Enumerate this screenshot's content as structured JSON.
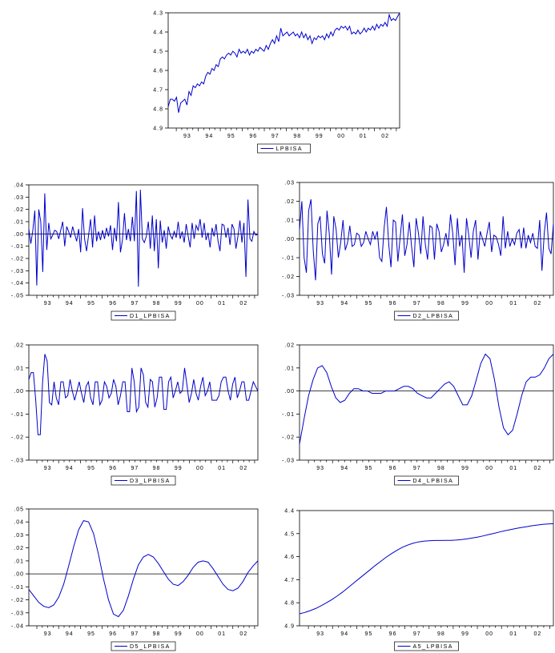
{
  "page": {
    "charts": [
      {
        "id": "top",
        "type": "line",
        "legend": "LPBISA",
        "ylim": [
          4.3,
          4.9
        ],
        "yticks": [
          "4.3",
          "4.4",
          "4.5",
          "4.6",
          "4.7",
          "4.8",
          "4.9"
        ],
        "xticks": [
          "93",
          "94",
          "95",
          "96",
          "97",
          "98",
          "99",
          "00",
          "01",
          "02"
        ],
        "zero_line": false,
        "line_color": "#0000cc",
        "series": [
          4.41,
          4.45,
          4.45,
          4.44,
          4.46,
          4.38,
          4.43,
          4.44,
          4.45,
          4.42,
          4.49,
          4.47,
          4.52,
          4.51,
          4.53,
          4.52,
          4.54,
          4.53,
          4.57,
          4.59,
          4.58,
          4.61,
          4.6,
          4.63,
          4.62,
          4.66,
          4.67,
          4.66,
          4.68,
          4.69,
          4.68,
          4.7,
          4.69,
          4.67,
          4.71,
          4.69,
          4.7,
          4.69,
          4.71,
          4.68,
          4.7,
          4.69,
          4.71,
          4.7,
          4.72,
          4.71,
          4.7,
          4.73,
          4.71,
          4.74,
          4.76,
          4.74,
          4.78,
          4.75,
          4.82,
          4.78,
          4.79,
          4.8,
          4.78,
          4.79,
          4.8,
          4.78,
          4.79,
          4.77,
          4.8,
          4.77,
          4.79,
          4.76,
          4.78,
          4.74,
          4.77,
          4.76,
          4.78,
          4.77,
          4.78,
          4.76,
          4.79,
          4.77,
          4.8,
          4.78,
          4.81,
          4.82,
          4.81,
          4.83,
          4.82,
          4.83,
          4.81,
          4.83,
          4.79,
          4.8,
          4.79,
          4.81,
          4.79,
          4.8,
          4.82,
          4.8,
          4.82,
          4.81,
          4.83,
          4.81,
          4.84,
          4.82,
          4.84,
          4.83,
          4.85,
          4.83,
          4.89,
          4.86,
          4.87,
          4.86,
          4.88,
          4.9
        ]
      },
      {
        "id": "d1",
        "type": "line",
        "legend": "D1_LPBISA",
        "ylim": [
          -0.05,
          0.04
        ],
        "yticks": [
          ".04",
          ".03",
          ".02",
          ".01",
          ".00",
          "-.01",
          "-.02",
          "-.03",
          "-.04",
          "-.05"
        ],
        "xticks": [
          "93",
          "94",
          "95",
          "96",
          "97",
          "98",
          "99",
          "00",
          "01",
          "02"
        ],
        "zero_line": true,
        "line_color": "#0000cc",
        "series": [
          0.004,
          -0.008,
          0.003,
          0.019,
          -0.042,
          0.02,
          0.01,
          -0.031,
          0.033,
          -0.013,
          0.009,
          -0.004,
          -0.001,
          0.003,
          0.002,
          -0.004,
          0.003,
          0.01,
          -0.01,
          0.006,
          0.002,
          -0.003,
          0.006,
          0.0,
          -0.006,
          0.004,
          -0.015,
          0.021,
          -0.004,
          -0.014,
          -0.001,
          0.012,
          -0.011,
          0.015,
          -0.006,
          0.002,
          -0.005,
          0.003,
          -0.004,
          0.005,
          -0.002,
          0.007,
          -0.013,
          0.005,
          -0.006,
          0.026,
          -0.015,
          -0.005,
          0.017,
          -0.005,
          0.004,
          -0.006,
          0.014,
          -0.006,
          0.035,
          -0.043,
          0.036,
          -0.004,
          -0.007,
          -0.002,
          0.01,
          -0.012,
          0.015,
          -0.014,
          0.012,
          -0.028,
          0.011,
          -0.007,
          0.003,
          -0.012,
          0.006,
          -0.001,
          -0.004,
          0.002,
          -0.003,
          0.01,
          -0.004,
          0.002,
          -0.007,
          0.008,
          -0.002,
          -0.011,
          0.009,
          -0.004,
          0.007,
          0.003,
          0.012,
          -0.003,
          0.009,
          -0.005,
          0.001,
          -0.011,
          0.005,
          -0.002,
          0.008,
          -0.006,
          -0.014,
          0.008,
          0.007,
          -0.003,
          0.005,
          -0.009,
          0.008,
          0.004,
          -0.012,
          -0.002,
          0.011,
          -0.007,
          0.009,
          -0.035,
          0.028,
          -0.004,
          -0.006,
          0.002,
          -0.001,
          0.0
        ]
      },
      {
        "id": "d2",
        "type": "line",
        "legend": "D2_LPBISA",
        "ylim": [
          -0.03,
          0.03
        ],
        "yticks": [
          ".03",
          ".02",
          ".01",
          ".00",
          "-.01",
          "-.02",
          "-.03"
        ],
        "xticks": [
          "93",
          "94",
          "95",
          "96",
          "97",
          "98",
          "99",
          "00",
          "01",
          "02"
        ],
        "zero_line": true,
        "line_color": "#0000cc",
        "series": [
          0.005,
          0.02,
          -0.01,
          -0.018,
          0.015,
          0.021,
          -0.006,
          -0.022,
          0.008,
          0.012,
          -0.008,
          -0.013,
          0.015,
          0.003,
          -0.019,
          0.012,
          0.005,
          -0.01,
          -0.002,
          0.01,
          -0.006,
          -0.002,
          0.007,
          -0.004,
          -0.003,
          0.003,
          0.002,
          -0.004,
          -0.002,
          0.004,
          0.0,
          -0.003,
          0.004,
          0.0,
          0.004,
          -0.01,
          -0.012,
          0.006,
          0.017,
          -0.003,
          -0.015,
          0.01,
          0.009,
          -0.012,
          0.001,
          0.013,
          -0.009,
          -0.003,
          0.009,
          -0.004,
          -0.015,
          0.011,
          0.003,
          -0.008,
          0.012,
          -0.003,
          -0.011,
          0.007,
          0.006,
          -0.011,
          0.008,
          0.004,
          -0.007,
          -0.003,
          0.003,
          -0.004,
          0.013,
          0.003,
          -0.014,
          0.011,
          -0.004,
          0.002,
          -0.018,
          0.011,
          0.002,
          -0.01,
          0.004,
          0.01,
          -0.011,
          0.004,
          0.0,
          -0.004,
          0.003,
          0.009,
          -0.007,
          0.002,
          0.001,
          -0.003,
          -0.009,
          0.012,
          -0.005,
          0.004,
          -0.004,
          0.0,
          -0.003,
          0.003,
          0.005,
          -0.005,
          0.006,
          -0.005,
          0.002,
          -0.002,
          0.003,
          -0.004,
          -0.005,
          0.01,
          -0.017,
          0.003,
          0.014,
          -0.005,
          -0.008,
          0.008
        ]
      },
      {
        "id": "d3",
        "type": "line",
        "legend": "D3_LPBISA",
        "ylim": [
          -0.03,
          0.02
        ],
        "yticks": [
          ".02",
          ".01",
          ".00",
          "-.01",
          "-.02",
          "-.03"
        ],
        "xticks": [
          "93",
          "94",
          "95",
          "96",
          "97",
          "98",
          "99",
          "00",
          "01",
          "02"
        ],
        "zero_line": true,
        "line_color": "#0000cc",
        "series": [
          0.005,
          0.008,
          0.008,
          -0.004,
          -0.019,
          -0.019,
          0.004,
          0.016,
          0.013,
          -0.005,
          -0.006,
          0.004,
          -0.003,
          -0.006,
          0.004,
          0.004,
          -0.003,
          -0.002,
          0.005,
          0.0,
          -0.004,
          0.0,
          0.004,
          -0.001,
          -0.005,
          0.002,
          0.004,
          -0.003,
          -0.006,
          0.004,
          0.004,
          -0.006,
          -0.004,
          0.004,
          0.002,
          -0.003,
          -0.001,
          0.005,
          0.002,
          -0.006,
          -0.002,
          0.004,
          0.004,
          -0.009,
          -0.009,
          0.01,
          0.004,
          -0.009,
          -0.007,
          0.01,
          0.007,
          -0.005,
          -0.007,
          0.005,
          0.004,
          -0.007,
          -0.003,
          0.006,
          0.006,
          -0.008,
          -0.008,
          0.004,
          0.006,
          -0.003,
          0.0,
          0.004,
          -0.001,
          0.0,
          0.01,
          0.003,
          -0.005,
          -0.001,
          0.005,
          -0.001,
          -0.004,
          0.002,
          0.006,
          -0.002,
          0.0,
          0.004,
          -0.004,
          -0.004,
          -0.004,
          -0.002,
          0.004,
          0.006,
          0.006,
          0.0,
          -0.004,
          0.003,
          0.006,
          -0.003,
          0.0,
          0.004,
          0.004,
          -0.004,
          -0.004,
          0.0,
          0.004,
          0.002,
          0.0
        ]
      },
      {
        "id": "d4",
        "type": "line",
        "legend": "D4_LPBISA",
        "ylim": [
          -0.03,
          0.02
        ],
        "yticks": [
          ".02",
          ".01",
          ".00",
          "-.01",
          "-.02",
          "-.03"
        ],
        "xticks": [
          "93",
          "94",
          "95",
          "96",
          "97",
          "98",
          "99",
          "00",
          "01",
          "02"
        ],
        "zero_line": true,
        "line_color": "#0000cc",
        "series": [
          -0.023,
          -0.012,
          -0.002,
          0.005,
          0.01,
          0.011,
          0.008,
          0.002,
          -0.003,
          -0.005,
          -0.004,
          -0.001,
          0.001,
          0.001,
          0.0,
          0.0,
          -0.001,
          -0.001,
          -0.001,
          0.0,
          0.0,
          0.0,
          0.001,
          0.002,
          0.002,
          0.001,
          -0.001,
          -0.002,
          -0.003,
          -0.003,
          -0.001,
          0.001,
          0.003,
          0.004,
          0.002,
          -0.002,
          -0.006,
          -0.006,
          -0.002,
          0.005,
          0.012,
          0.016,
          0.014,
          0.005,
          -0.007,
          -0.016,
          -0.019,
          -0.017,
          -0.01,
          -0.002,
          0.004,
          0.006,
          0.006,
          0.007,
          0.01,
          0.014,
          0.016
        ]
      },
      {
        "id": "d5",
        "type": "line",
        "legend": "D5_LPBISA",
        "ylim": [
          -0.04,
          0.05
        ],
        "yticks": [
          ".05",
          ".04",
          ".03",
          ".02",
          ".01",
          ".00",
          "-.01",
          "-.02",
          "-.03",
          "-.04"
        ],
        "xticks": [
          "93",
          "94",
          "95",
          "96",
          "97",
          "98",
          "99",
          "00",
          "01",
          "02"
        ],
        "zero_line": true,
        "line_color": "#0000cc",
        "series": [
          -0.012,
          -0.017,
          -0.022,
          -0.025,
          -0.026,
          -0.024,
          -0.018,
          -0.008,
          0.006,
          0.021,
          0.034,
          0.041,
          0.04,
          0.031,
          0.015,
          -0.004,
          -0.02,
          -0.031,
          -0.033,
          -0.028,
          -0.017,
          -0.004,
          0.007,
          0.013,
          0.015,
          0.013,
          0.008,
          0.002,
          -0.004,
          -0.008,
          -0.009,
          -0.006,
          -0.001,
          0.005,
          0.009,
          0.01,
          0.009,
          0.004,
          -0.002,
          -0.008,
          -0.012,
          -0.013,
          -0.011,
          -0.006,
          0.001,
          0.006,
          0.01
        ]
      },
      {
        "id": "a5",
        "type": "line",
        "legend": "A5_LPBISA",
        "ylim": [
          4.4,
          4.9
        ],
        "yticks": [
          "4.4",
          "4.5",
          "4.6",
          "4.7",
          "4.8",
          "4.9"
        ],
        "xticks": [
          "93",
          "94",
          "95",
          "96",
          "97",
          "98",
          "99",
          "00",
          "01",
          "02"
        ],
        "zero_line": false,
        "line_color": "#0000cc",
        "series": [
          4.452,
          4.458,
          4.466,
          4.475,
          4.487,
          4.5,
          4.514,
          4.53,
          4.547,
          4.566,
          4.585,
          4.604,
          4.623,
          4.642,
          4.661,
          4.679,
          4.697,
          4.713,
          4.727,
          4.74,
          4.75,
          4.758,
          4.764,
          4.767,
          4.769,
          4.77,
          4.77,
          4.771,
          4.771,
          4.772,
          4.774,
          4.777,
          4.781,
          4.785,
          4.79,
          4.796,
          4.801,
          4.807,
          4.812,
          4.817,
          4.822,
          4.826,
          4.83,
          4.834,
          4.837,
          4.84,
          4.842,
          4.843
        ]
      }
    ]
  },
  "chart_data": [
    {
      "type": "line",
      "legend": "LPBISA",
      "ylim": [
        4.3,
        4.9
      ],
      "x_labels": [
        "93",
        "94",
        "95",
        "96",
        "97",
        "98",
        "99",
        "00",
        "01",
        "02"
      ]
    },
    {
      "type": "line",
      "legend": "D1_LPBISA",
      "ylim": [
        -0.05,
        0.04
      ],
      "x_labels": [
        "93",
        "94",
        "95",
        "96",
        "97",
        "98",
        "99",
        "00",
        "01",
        "02"
      ]
    },
    {
      "type": "line",
      "legend": "D2_LPBISA",
      "ylim": [
        -0.03,
        0.03
      ],
      "x_labels": [
        "93",
        "94",
        "95",
        "96",
        "97",
        "98",
        "99",
        "00",
        "01",
        "02"
      ]
    },
    {
      "type": "line",
      "legend": "D3_LPBISA",
      "ylim": [
        -0.03,
        0.02
      ],
      "x_labels": [
        "93",
        "94",
        "95",
        "96",
        "97",
        "98",
        "99",
        "00",
        "01",
        "02"
      ]
    },
    {
      "type": "line",
      "legend": "D4_LPBISA",
      "ylim": [
        -0.03,
        0.02
      ],
      "x_labels": [
        "93",
        "94",
        "95",
        "96",
        "97",
        "98",
        "99",
        "00",
        "01",
        "02"
      ]
    },
    {
      "type": "line",
      "legend": "D5_LPBISA",
      "ylim": [
        -0.04,
        0.05
      ],
      "x_labels": [
        "93",
        "94",
        "95",
        "96",
        "97",
        "98",
        "99",
        "00",
        "01",
        "02"
      ]
    },
    {
      "type": "line",
      "legend": "A5_LPBISA",
      "ylim": [
        4.4,
        4.9
      ],
      "x_labels": [
        "93",
        "94",
        "95",
        "96",
        "97",
        "98",
        "99",
        "00",
        "01",
        "02"
      ]
    }
  ]
}
